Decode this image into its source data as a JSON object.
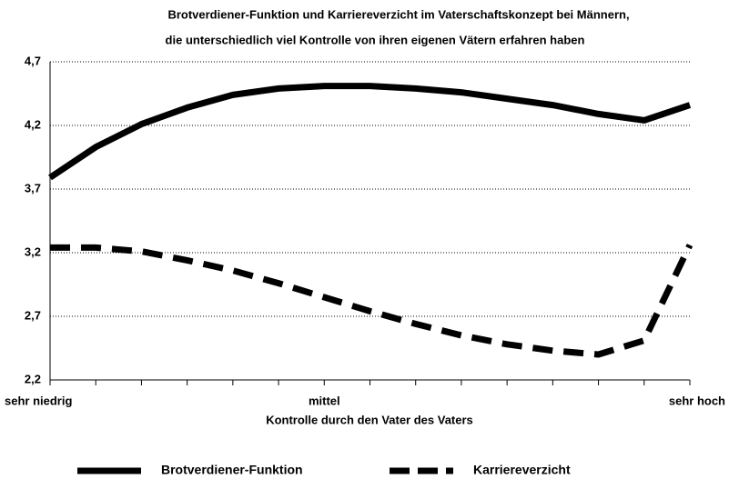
{
  "chart_data": {
    "type": "line",
    "title": [
      "Brotverdiener-Funktion und Karriereverzicht im Vaterschaftskonzept bei Männern,",
      "die unterschiedlich viel Kontrolle von ihren eigenen Vätern erfahren haben"
    ],
    "x_label": "Kontrolle durch den Vater des Vaters",
    "categories": [
      "sehr niedrig",
      null,
      null,
      null,
      null,
      null,
      "mittel",
      null,
      null,
      null,
      null,
      null,
      null,
      null,
      "sehr hoch"
    ],
    "series": [
      {
        "name": "Brotverdiener-Funktion",
        "color": "#000000",
        "line_style": "solid",
        "values": [
          3.79,
          4.03,
          4.21,
          4.34,
          4.44,
          4.49,
          4.51,
          4.51,
          4.49,
          4.46,
          4.41,
          4.36,
          4.29,
          4.24,
          4.36
        ]
      },
      {
        "name": "Karriereverzicht",
        "color": "#000000",
        "line_style": "dashed",
        "values": [
          3.24,
          3.24,
          3.21,
          3.14,
          3.06,
          2.96,
          2.85,
          2.74,
          2.64,
          2.55,
          2.48,
          2.43,
          2.4,
          2.51,
          3.26
        ]
      }
    ],
    "ylim": [
      2.2,
      4.7
    ],
    "yticks": [
      {
        "value": 2.2,
        "label": "2,2"
      },
      {
        "value": 2.7,
        "label": "2,7"
      },
      {
        "value": 3.2,
        "label": "3,2"
      },
      {
        "value": 3.7,
        "label": "3,7"
      },
      {
        "value": 4.2,
        "label": "4,2"
      },
      {
        "value": 4.7,
        "label": "4,7"
      }
    ],
    "grid": true,
    "legend": "bottom"
  }
}
